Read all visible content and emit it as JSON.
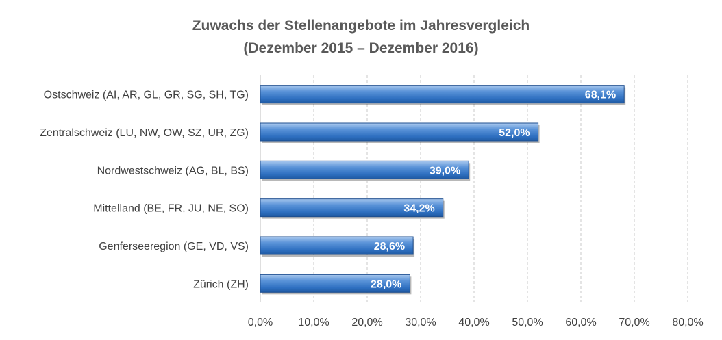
{
  "chart_data": {
    "type": "bar",
    "orientation": "horizontal",
    "title": "Zuwachs der Stellenangebote im Jahresvergleich",
    "subtitle": "(Dezember 2015 – Dezember 2016)",
    "categories": [
      "Ostschweiz (AI, AR, GL, GR, SG, SH, TG)",
      "Zentralschweiz (LU, NW, OW, SZ, UR, ZG)",
      "Nordwestschweiz (AG, BL, BS)",
      "Mittelland (BE, FR, JU, NE, SO)",
      "Genferseeregion (GE, VD, VS)",
      "Zürich (ZH)"
    ],
    "values": [
      68.1,
      52.0,
      39.0,
      34.2,
      28.6,
      28.0
    ],
    "data_labels": [
      "68,1%",
      "52,0%",
      "39,0%",
      "34,2%",
      "28,6%",
      "28,0%"
    ],
    "xlim": [
      0,
      80
    ],
    "xticks": [
      0,
      10,
      20,
      30,
      40,
      50,
      60,
      70,
      80
    ],
    "xtick_labels": [
      "0,0%",
      "10,0%",
      "20,0%",
      "30,0%",
      "40,0%",
      "50,0%",
      "60,0%",
      "70,0%",
      "80,0%"
    ],
    "grid": "vertical dashed",
    "legend": "none",
    "bar_color": "#2e6fc0"
  }
}
